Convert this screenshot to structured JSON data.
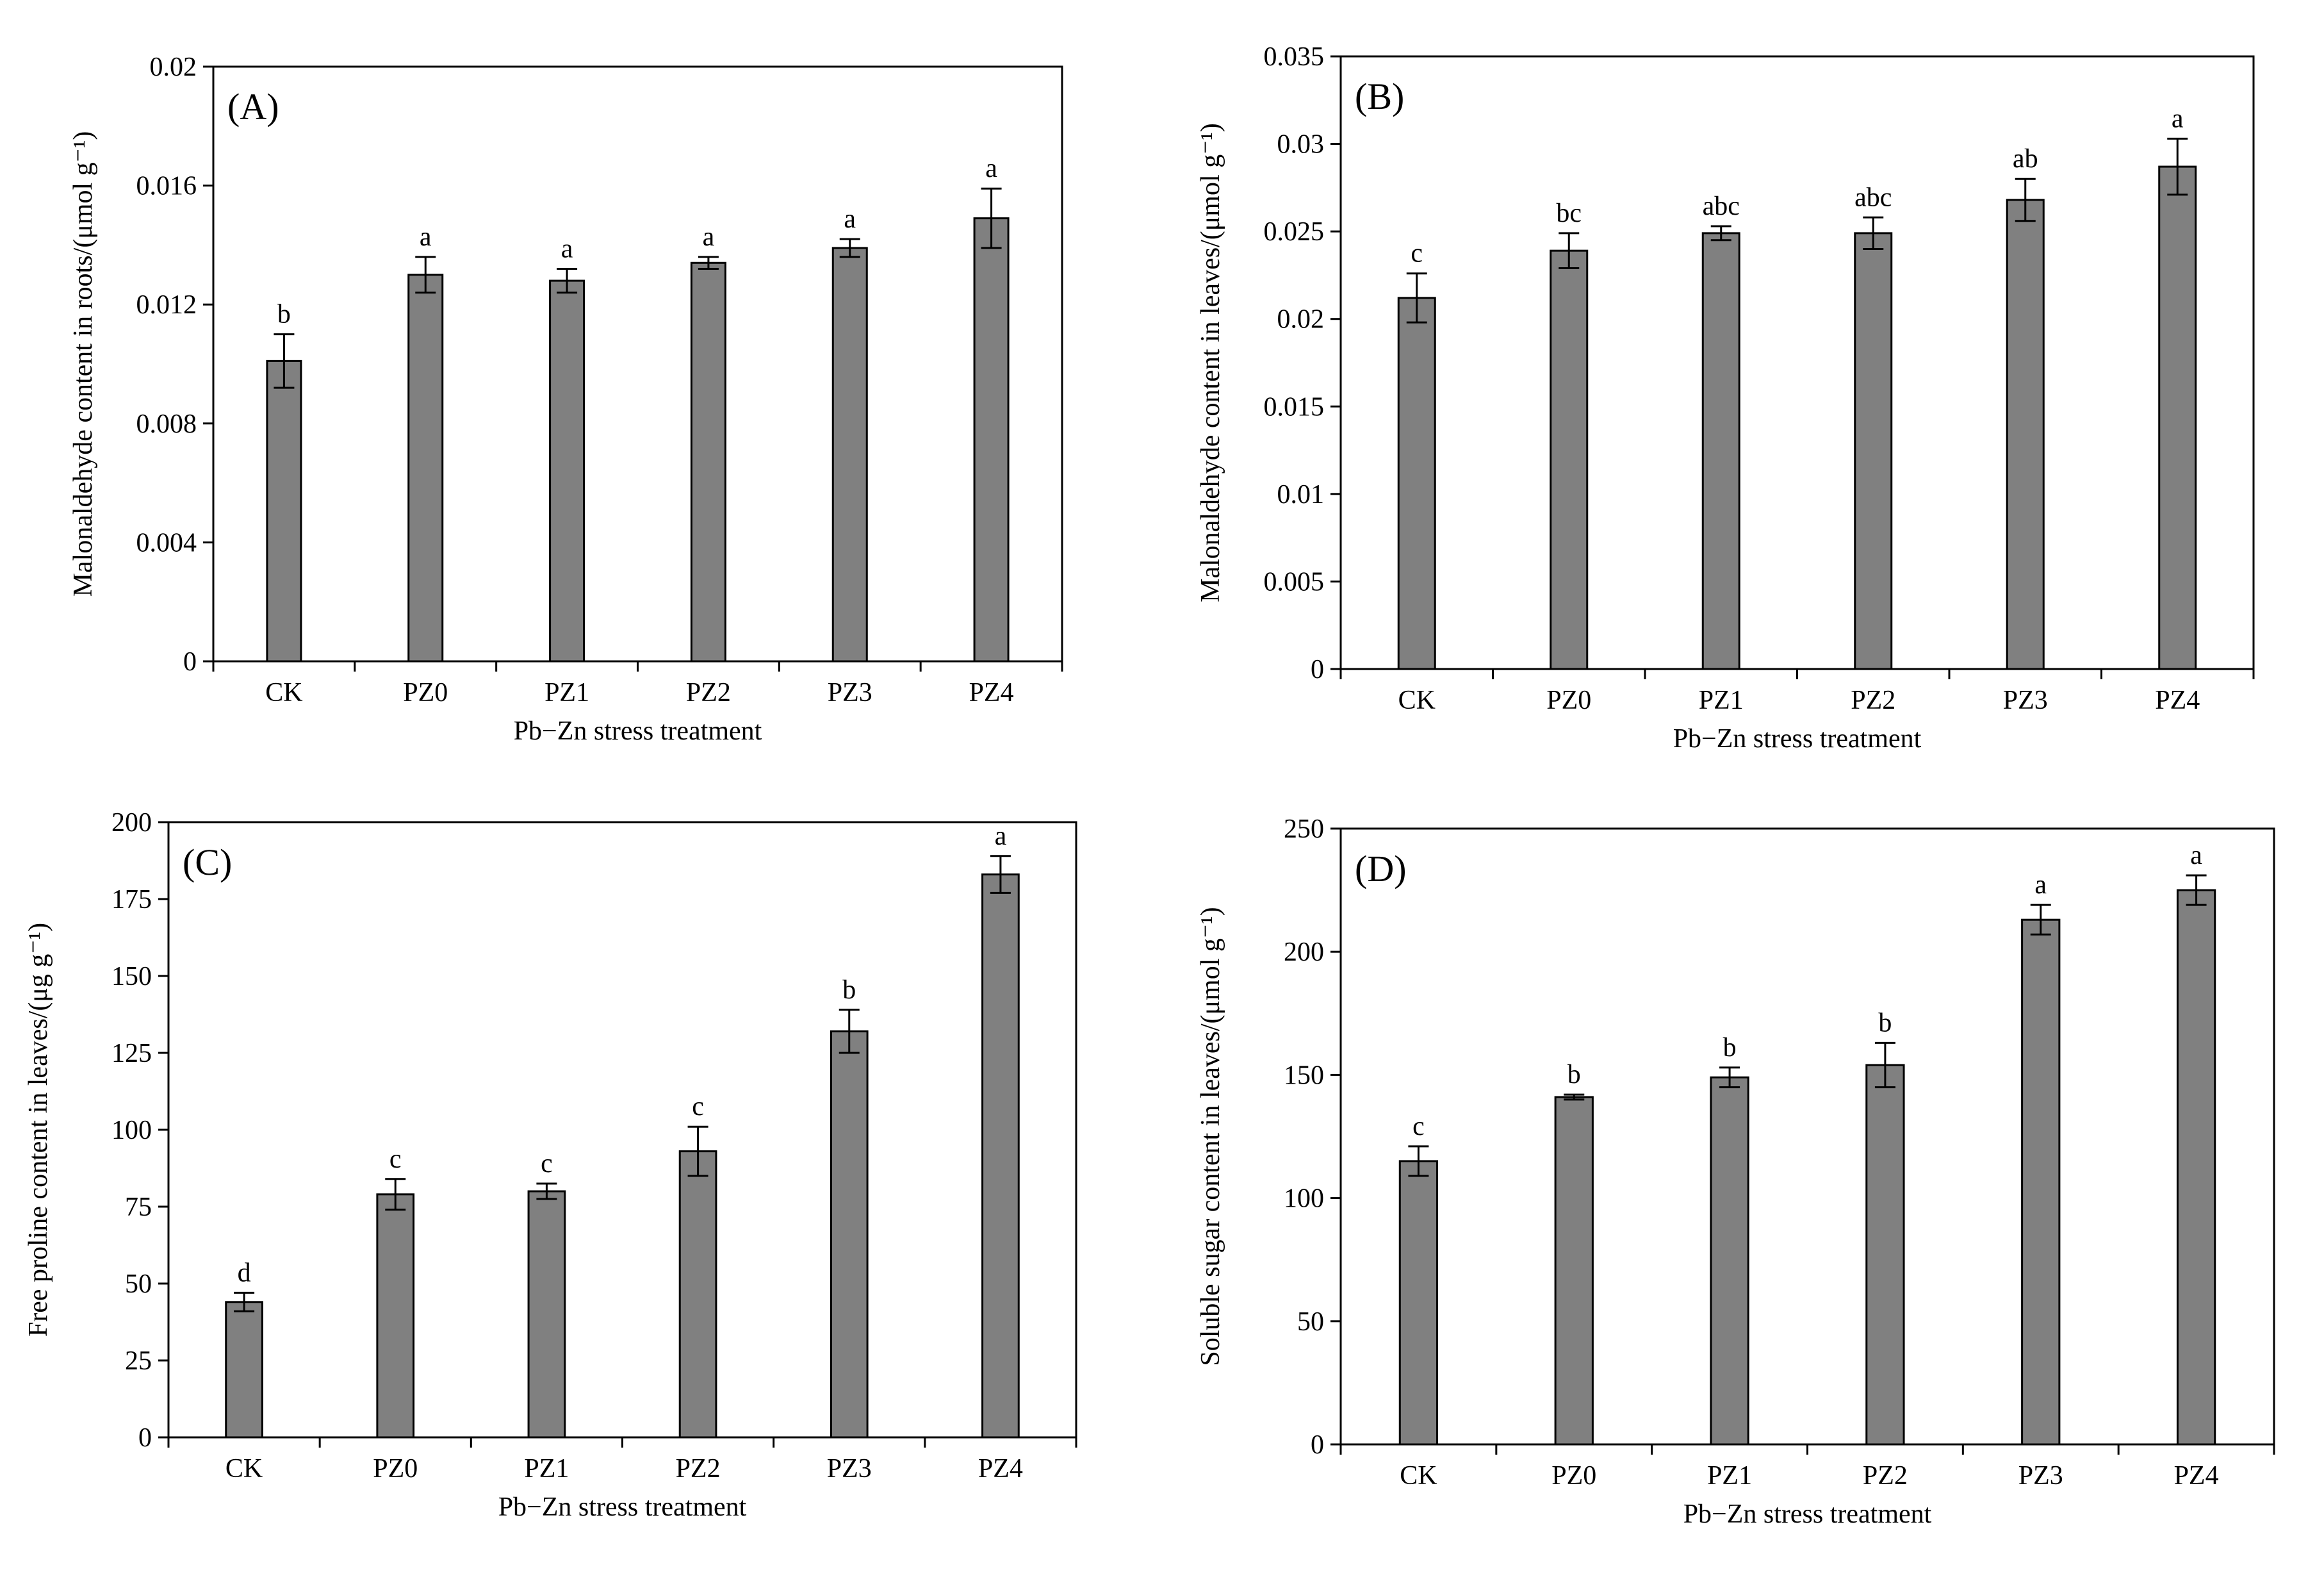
{
  "chart_data": [
    {
      "type": "bar",
      "panel_label": "(A)",
      "categories": [
        "CK",
        "PZ0",
        "PZ1",
        "PZ2",
        "PZ3",
        "PZ4"
      ],
      "values": [
        0.0101,
        0.013,
        0.0128,
        0.0134,
        0.0139,
        0.0149
      ],
      "errors": [
        0.0009,
        0.0006,
        0.0004,
        0.0002,
        0.0003,
        0.001
      ],
      "significance": [
        "b",
        "a",
        "a",
        "a",
        "a",
        "a"
      ],
      "xlabel": "Pb−Zn stress treatment",
      "ylabel": "Malonaldehyde  content in roots/(μmol g⁻¹)",
      "ylim": [
        0,
        0.02
      ],
      "yticks": [
        0,
        0.004,
        0.008,
        0.012,
        0.016,
        0.02
      ],
      "ytick_labels": [
        "0",
        "0.004",
        "0.008",
        "0.012",
        "0.016",
        "0.02"
      ]
    },
    {
      "type": "bar",
      "panel_label": "(B)",
      "categories": [
        "CK",
        "PZ0",
        "PZ1",
        "PZ2",
        "PZ3",
        "PZ4"
      ],
      "values": [
        0.0212,
        0.0239,
        0.0249,
        0.0249,
        0.0268,
        0.0287
      ],
      "errors": [
        0.0014,
        0.001,
        0.0004,
        0.0009,
        0.0012,
        0.0016
      ],
      "significance": [
        "c",
        "bc",
        "abc",
        "abc",
        "ab",
        "a"
      ],
      "xlabel": "Pb−Zn stress treatment",
      "ylabel": "Malonaldehyde  content in leaves/(μmol g⁻¹)",
      "ylim": [
        0,
        0.035
      ],
      "yticks": [
        0,
        0.005,
        0.01,
        0.015,
        0.02,
        0.025,
        0.03,
        0.035
      ],
      "ytick_labels": [
        "0",
        "0.005",
        "0.01",
        "0.015",
        "0.02",
        "0.025",
        "0.03",
        "0.035"
      ]
    },
    {
      "type": "bar",
      "panel_label": "(C)",
      "categories": [
        "CK",
        "PZ0",
        "PZ1",
        "PZ2",
        "PZ3",
        "PZ4"
      ],
      "values": [
        44,
        79,
        80,
        93,
        132,
        183
      ],
      "errors": [
        3,
        5,
        2.5,
        8,
        7,
        6
      ],
      "significance": [
        "d",
        "c",
        "c",
        "c",
        "b",
        "a"
      ],
      "xlabel": "Pb−Zn stress treatment",
      "ylabel": "Free proline content in leaves/(μg g⁻¹)",
      "ylim": [
        0,
        200
      ],
      "yticks": [
        0,
        25,
        50,
        75,
        100,
        125,
        150,
        175,
        200
      ],
      "ytick_labels": [
        "0",
        "25",
        "50",
        "75",
        "100",
        "125",
        "150",
        "175",
        "200"
      ]
    },
    {
      "type": "bar",
      "panel_label": "(D)",
      "categories": [
        "CK",
        "PZ0",
        "PZ1",
        "PZ2",
        "PZ3",
        "PZ4"
      ],
      "values": [
        115,
        141,
        149,
        154,
        213,
        225
      ],
      "errors": [
        6,
        1,
        4,
        9,
        6,
        6
      ],
      "significance": [
        "c",
        "b",
        "b",
        "b",
        "a",
        "a"
      ],
      "xlabel": "Pb−Zn stress treatment",
      "ylabel": "Soluble sugar content in leaves/(μmol g⁻¹)",
      "ylim": [
        0,
        250
      ],
      "yticks": [
        0,
        50,
        100,
        150,
        200,
        250
      ],
      "ytick_labels": [
        "0",
        "50",
        "100",
        "150",
        "200",
        "250"
      ]
    }
  ],
  "colors": {
    "bar_fill": "#808080",
    "bar_stroke": "#000000",
    "axis": "#000000",
    "background": "#ffffff"
  }
}
